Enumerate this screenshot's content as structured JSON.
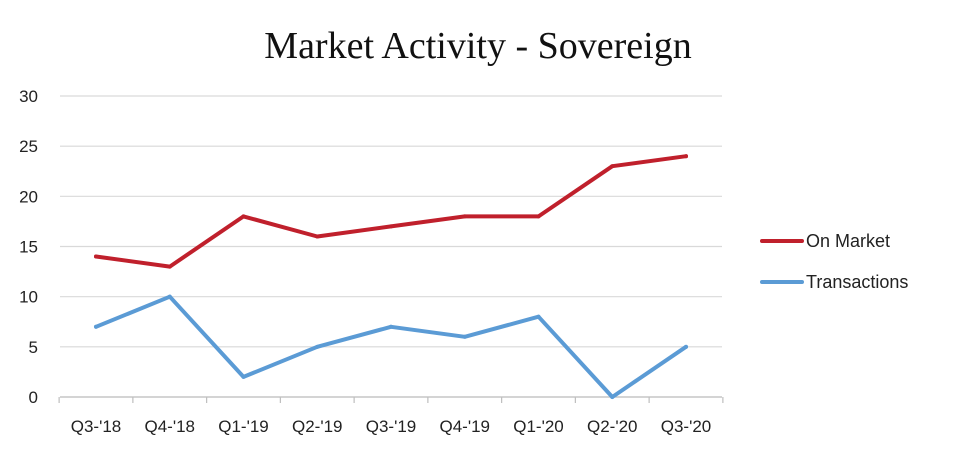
{
  "chart_data": {
    "type": "line",
    "title": "Market Activity - Sovereign",
    "xlabel": "",
    "ylabel": "",
    "categories": [
      "Q3-'18",
      "Q4-'18",
      "Q1-'19",
      "Q2-'19",
      "Q3-'19",
      "Q4-'19",
      "Q1-'20",
      "Q2-'20",
      "Q3-'20"
    ],
    "ylim": [
      0,
      30
    ],
    "yticks": [
      0,
      5,
      10,
      15,
      20,
      25,
      30
    ],
    "grid": true,
    "legend_position": "right",
    "series": [
      {
        "name": "On Market",
        "color": "#c0202c",
        "values": [
          14,
          13,
          18,
          16,
          17,
          18,
          18,
          23,
          24
        ]
      },
      {
        "name": "Transactions",
        "color": "#5b9bd5",
        "values": [
          7,
          10,
          2,
          5,
          7,
          6,
          8,
          0,
          5
        ]
      }
    ]
  }
}
